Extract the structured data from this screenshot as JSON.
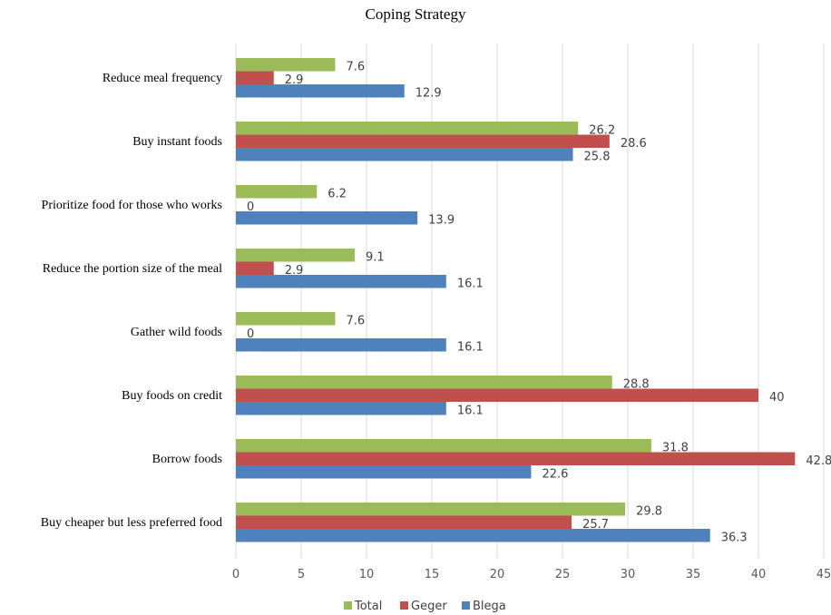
{
  "chart_data": {
    "type": "bar",
    "orientation": "horizontal",
    "title": "Coping Strategy",
    "xlabel": "",
    "ylabel": "",
    "xlim": [
      0,
      45
    ],
    "xticks": [
      0,
      5,
      10,
      15,
      20,
      25,
      30,
      35,
      40,
      45
    ],
    "grid": true,
    "legend_position": "bottom",
    "categories": [
      "Reduce meal frequency",
      "Buy instant foods",
      "Prioritize food for those who works",
      "Reduce the portion size of the meal",
      "Gather wild foods",
      "Buy foods on credit",
      "Borrow foods",
      "Buy cheaper but less preferred food"
    ],
    "series": [
      {
        "name": "Total",
        "color": "#9bbb59",
        "values": [
          7.6,
          26.2,
          6.2,
          9.1,
          7.6,
          28.8,
          31.8,
          29.8
        ]
      },
      {
        "name": "Geger",
        "color": "#c0504d",
        "values": [
          2.9,
          28.6,
          0,
          2.9,
          0,
          40,
          42.8,
          25.7
        ]
      },
      {
        "name": "Blega",
        "color": "#4f81bd",
        "values": [
          12.9,
          25.8,
          13.9,
          16.1,
          16.1,
          16.1,
          22.6,
          36.3
        ]
      }
    ]
  }
}
